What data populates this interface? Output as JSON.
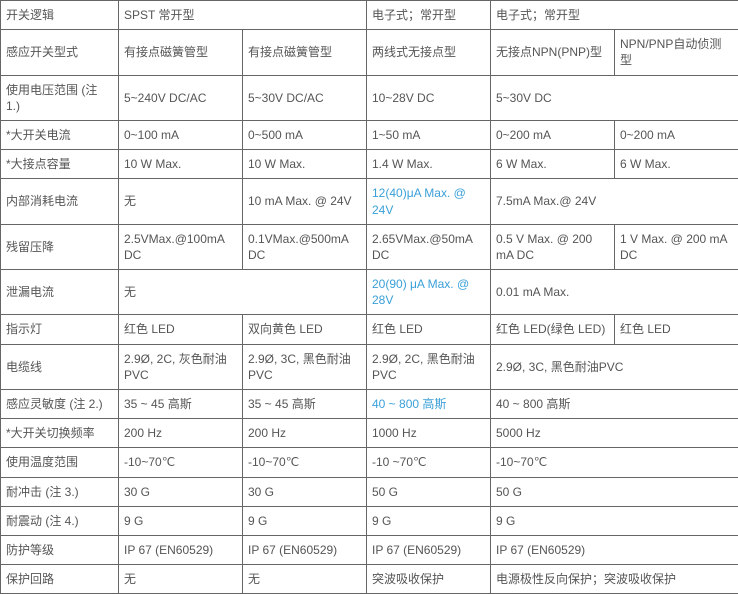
{
  "table": {
    "colors": {
      "text": "#555555",
      "border": "#666666",
      "highlight": "#3aa0d8",
      "background": "#ffffff"
    },
    "font_size_pt": 9,
    "columns": [
      "label",
      "c1",
      "c2",
      "c3",
      "c4",
      "c5"
    ],
    "rows": {
      "logic": {
        "label": "开关逻辑",
        "c1": "SPST 常开型",
        "c3": "电子式；常开型",
        "c4": "电子式；常开型"
      },
      "switch_type": {
        "label": "感应开关型式",
        "c1": "有接点磁簧管型",
        "c2": "有接点磁簧管型",
        "c3": "两线式无接点型",
        "c4": "无接点NPN(PNP)型",
        "c5": "NPN/PNP自动侦测型"
      },
      "voltage": {
        "label": "使用电压范围 (注 1.)",
        "c1": "5~240V DC/AC",
        "c2": "5~30V DC/AC",
        "c3": "10~28V DC",
        "c4": "5~30V DC"
      },
      "current": {
        "label": "*大开关电流",
        "c1": "0~100 mA",
        "c2": "0~500 mA",
        "c3": "1~50 mA",
        "c4": "0~200 mA",
        "c5": "0~200 mA"
      },
      "capacity": {
        "label": "*大接点容量",
        "c1": "10 W Max.",
        "c2": "10 W Max.",
        "c3": "1.4 W Max.",
        "c4": "6 W Max.",
        "c5": "6 W Max."
      },
      "consumption": {
        "label": "内部消耗电流",
        "c1": "无",
        "c2": "10 mA Max. @ 24V",
        "c3": "12(40)μA Max. @ 24V",
        "c4": "7.5mA Max.@ 24V"
      },
      "residual": {
        "label": "残留压降",
        "c1": "2.5VMax.@100mA DC",
        "c2": "0.1VMax.@500mA DC",
        "c3": "2.65VMax.@50mA DC",
        "c4": "0.5 V Max. @ 200 mA DC",
        "c5": "1 V Max. @ 200 mA DC"
      },
      "leakage": {
        "label": "泄漏电流",
        "c1": "无",
        "c3": "20(90) μA Max. @ 28V",
        "c4": "0.01 mA Max."
      },
      "indicator": {
        "label": "指示灯",
        "c1": "红色  LED",
        "c2": "双向黄色  LED",
        "c3": "红色  LED",
        "c4": "红色  LED(绿色  LED)",
        "c5": "红色  LED"
      },
      "cable": {
        "label": "电缆线",
        "c1": "2.9Ø, 2C, 灰色耐油PVC",
        "c2": "2.9Ø, 3C, 黑色耐油PVC",
        "c3": "2.9Ø,  2C,  黑色耐油PVC",
        "c4": "2.9Ø, 3C, 黑色耐油PVC"
      },
      "sensitivity": {
        "label": "感应灵敏度 (注 2.)",
        "c1": "35 ~ 45 高斯",
        "c2": "35 ~ 45 高斯",
        "c3": "40 ~ 800 高斯",
        "c4": "40 ~ 800 高斯"
      },
      "switch_freq": {
        "label": "*大开关切换频率",
        "c1": "200 Hz",
        "c2": "200 Hz",
        "c3": "1000 Hz",
        "c4": "5000 Hz"
      },
      "temp": {
        "label": "使用温度范围",
        "c1": "-10~70℃",
        "c2": "-10~70℃",
        "c3": "-10 ~70℃",
        "c4": "-10~70℃"
      },
      "shock": {
        "label": "耐冲击 (注 3.)",
        "c1": "30 G",
        "c2": "30 G",
        "c3": "50 G",
        "c4": "50 G"
      },
      "vibration": {
        "label": "耐震动 (注 4.)",
        "c1": "9 G",
        "c2": "9 G",
        "c3": "9 G",
        "c4": "9 G"
      },
      "protection": {
        "label": "防护等级",
        "c1": "IP 67 (EN60529)",
        "c2": "IP 67 (EN60529)",
        "c3": "IP 67 (EN60529)",
        "c4": "IP 67 (EN60529)"
      },
      "circuit": {
        "label": "保护回路",
        "c1": "无",
        "c2": "无",
        "c3": "突波吸收保护",
        "c4": "电源极性反向保护；突波吸收保护"
      }
    }
  }
}
